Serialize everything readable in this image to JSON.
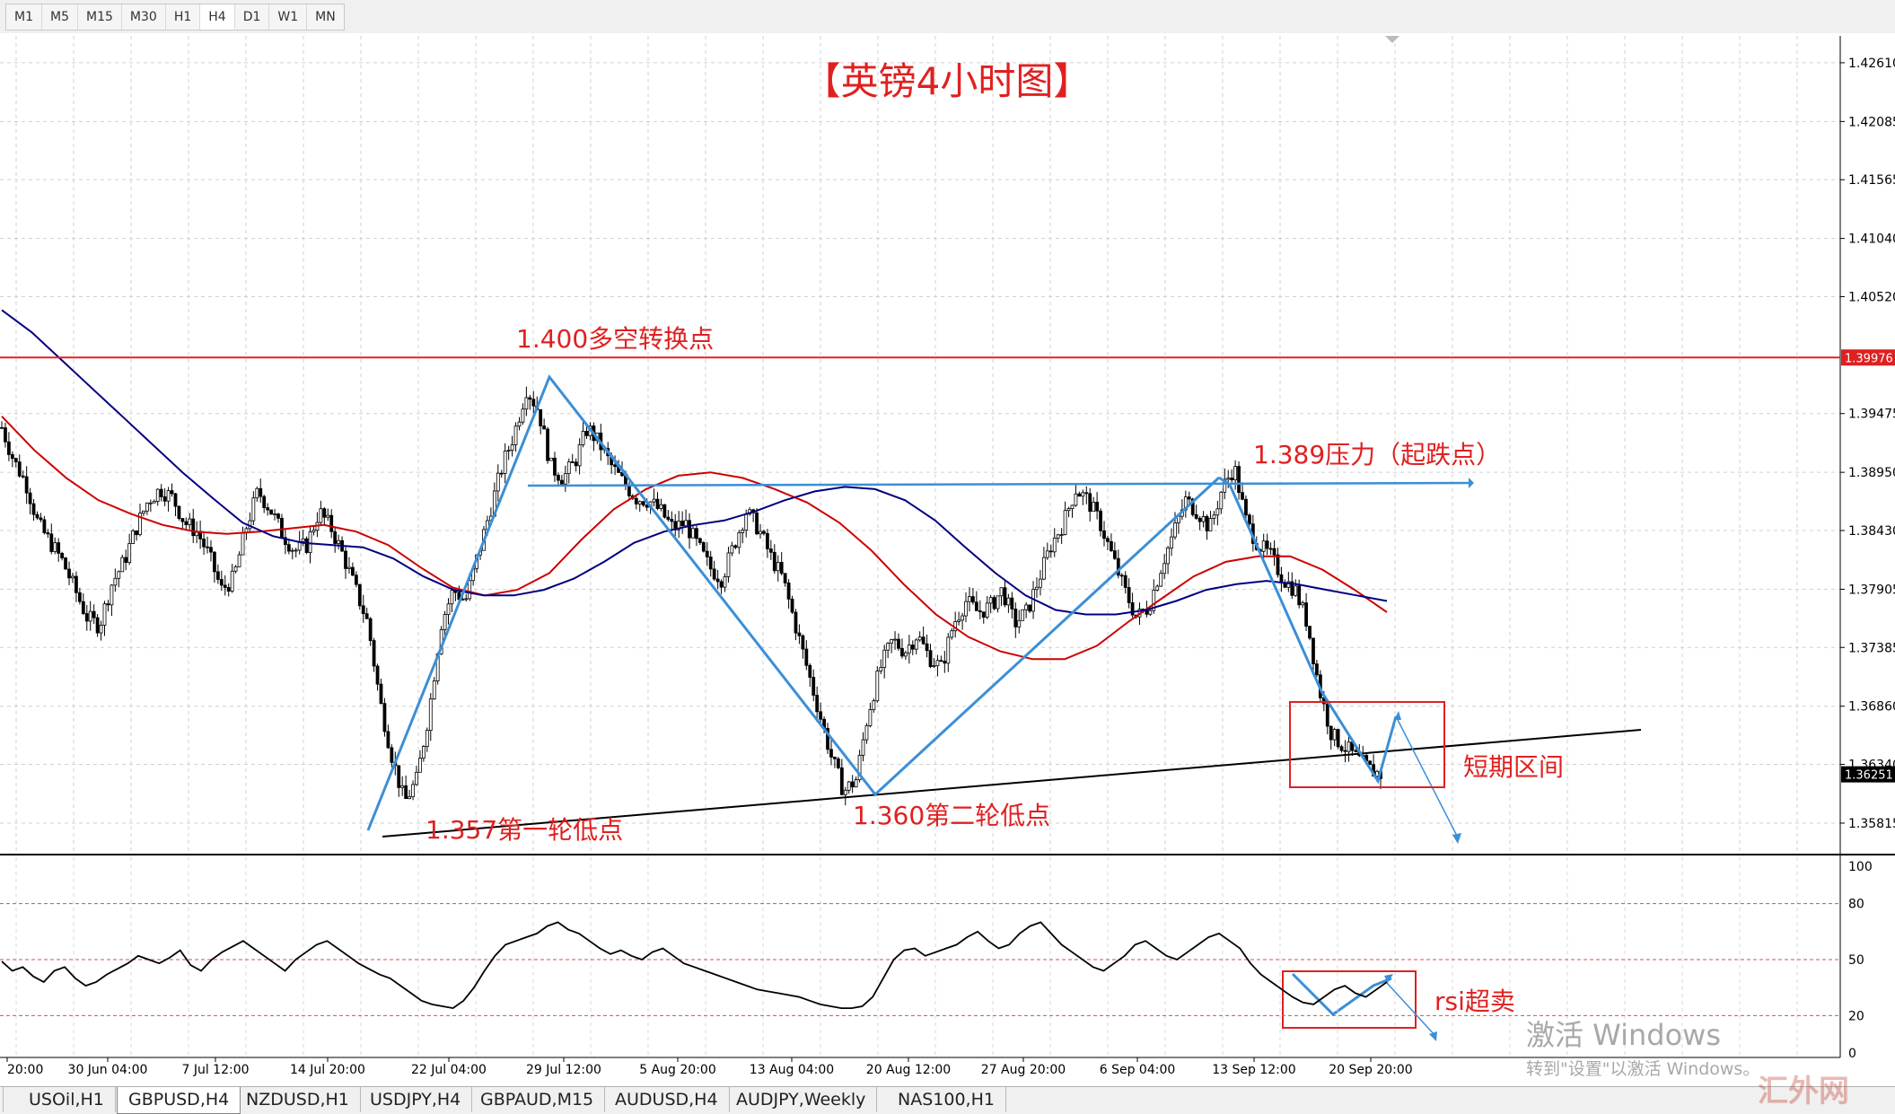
{
  "timeframes": [
    "M1",
    "M5",
    "M15",
    "M30",
    "H1",
    "H4",
    "D1",
    "W1",
    "MN"
  ],
  "active_timeframe": "H4",
  "chart_data": [
    {
      "type": "candlestick",
      "title": "【英镑4小时图】",
      "symbol": "GBPUSD,H4",
      "ylim": [
        1.3555,
        1.4285
      ],
      "y_ticks": [
        "1.42610",
        "1.42085",
        "1.41565",
        "1.41040",
        "1.40520",
        "1.39475",
        "1.38950",
        "1.38430",
        "1.37905",
        "1.37385",
        "1.36860",
        "1.36340",
        "1.35815"
      ],
      "x_ticks": [
        "20:00",
        "30 Jun 04:00",
        "7 Jul 12:00",
        "14 Jul 20:00",
        "22 Jul 04:00",
        "29 Jul 12:00",
        "5 Aug 20:00",
        "13 Aug 04:00",
        "20 Aug 12:00",
        "27 Aug 20:00",
        "6 Sep 04:00",
        "13 Sep 12:00",
        "20 Sep 20:00"
      ],
      "grid": true,
      "current_price": "1.36251",
      "level_price": "1.39976",
      "close_path": [
        1.3935,
        1.3905,
        1.3885,
        1.3848,
        1.3832,
        1.3815,
        1.379,
        1.3765,
        1.3758,
        1.3795,
        1.3815,
        1.3845,
        1.387,
        1.388,
        1.3872,
        1.385,
        1.3842,
        1.382,
        1.379,
        1.38,
        1.3845,
        1.3878,
        1.3862,
        1.384,
        1.3825,
        1.383,
        1.386,
        1.3845,
        1.382,
        1.379,
        1.376,
        1.369,
        1.364,
        1.36,
        1.362,
        1.368,
        1.376,
        1.379,
        1.378,
        1.382,
        1.386,
        1.39,
        1.393,
        1.397,
        1.395,
        1.39,
        1.389,
        1.3905,
        1.3935,
        1.392,
        1.39,
        1.3885,
        1.3872,
        1.387,
        1.386,
        1.3845,
        1.385,
        1.383,
        1.381,
        1.38,
        1.383,
        1.386,
        1.3845,
        1.382,
        1.38,
        1.376,
        1.372,
        1.368,
        1.364,
        1.361,
        1.362,
        1.368,
        1.372,
        1.3745,
        1.3735,
        1.375,
        1.373,
        1.372,
        1.376,
        1.378,
        1.377,
        1.3775,
        1.379,
        1.376,
        1.377,
        1.38,
        1.383,
        1.385,
        1.388,
        1.387,
        1.385,
        1.382,
        1.379,
        1.3765,
        1.3775,
        1.381,
        1.384,
        1.387,
        1.386,
        1.3845,
        1.388,
        1.39,
        1.385,
        1.383,
        1.382,
        1.38,
        1.379,
        1.376,
        1.37,
        1.366,
        1.365,
        1.364,
        1.363,
        1.3625
      ],
      "series": [
        {
          "color": "#cc0000",
          "values": [
            1.3945,
            1.3915,
            1.389,
            1.387,
            1.3858,
            1.3848,
            1.3842,
            1.384,
            1.3842,
            1.3845,
            1.3848,
            1.3842,
            1.383,
            1.381,
            1.3792,
            1.3785,
            1.379,
            1.3805,
            1.3835,
            1.3862,
            1.388,
            1.3892,
            1.3895,
            1.389,
            1.388,
            1.3868,
            1.385,
            1.3825,
            1.3795,
            1.3768,
            1.3748,
            1.3735,
            1.3728,
            1.3728,
            1.374,
            1.3762,
            1.3782,
            1.3802,
            1.3815,
            1.382,
            1.382,
            1.3808,
            1.379,
            1.377
          ]
        },
        {
          "color": "#000080",
          "values": [
            1.404,
            1.402,
            1.3995,
            1.397,
            1.3945,
            1.392,
            1.3895,
            1.3872,
            1.385,
            1.3838,
            1.3832,
            1.383,
            1.3828,
            1.3818,
            1.3802,
            1.379,
            1.3785,
            1.3785,
            1.379,
            1.38,
            1.3815,
            1.3832,
            1.3842,
            1.3848,
            1.3852,
            1.386,
            1.387,
            1.3878,
            1.3882,
            1.388,
            1.387,
            1.3852,
            1.3828,
            1.3805,
            1.3785,
            1.3772,
            1.3768,
            1.3768,
            1.3772,
            1.378,
            1.379,
            1.3795,
            1.3798,
            1.3795,
            1.379,
            1.3785,
            1.378
          ]
        }
      ],
      "annotations": [
        {
          "text": "1.400多空转换点"
        },
        {
          "text": "1.389压力（起跌点）"
        },
        {
          "text": "1.357第一轮低点"
        },
        {
          "text": "1.360第二轮低点"
        },
        {
          "text": "短期区间"
        }
      ]
    },
    {
      "type": "line",
      "indicator": "RSI",
      "ylim": [
        0,
        100
      ],
      "y_ticks": [
        "100",
        "80",
        "50",
        "20",
        "0"
      ],
      "levels": [
        80,
        50,
        20
      ],
      "values": [
        49,
        44,
        46,
        41,
        38,
        44,
        46,
        40,
        36,
        38,
        42,
        45,
        48,
        52,
        50,
        48,
        51,
        55,
        47,
        44,
        50,
        54,
        57,
        60,
        56,
        52,
        48,
        44,
        50,
        54,
        58,
        60,
        56,
        52,
        48,
        45,
        42,
        40,
        36,
        32,
        28,
        26,
        25,
        24,
        28,
        35,
        44,
        52,
        58,
        60,
        62,
        64,
        68,
        70,
        66,
        64,
        60,
        56,
        53,
        55,
        52,
        50,
        54,
        56,
        52,
        48,
        46,
        44,
        42,
        40,
        38,
        36,
        34,
        33,
        32,
        31,
        30,
        28,
        26,
        25,
        24,
        24,
        25,
        30,
        40,
        50,
        55,
        56,
        52,
        54,
        56,
        58,
        62,
        65,
        60,
        56,
        58,
        64,
        68,
        70,
        64,
        58,
        54,
        50,
        46,
        44,
        48,
        52,
        58,
        60,
        56,
        52,
        50,
        54,
        58,
        62,
        64,
        60,
        56,
        48,
        42,
        38,
        34,
        30,
        27,
        26,
        30,
        34,
        36,
        32,
        30,
        34,
        38
      ]
    }
  ],
  "annotation_label_rsi": "rsi超卖",
  "tabs": [
    "USOil,H1",
    "GBPUSD,H4",
    "NZDUSD,H1",
    "USDJPY,H4",
    "GBPAUD,M15",
    "AUDUSD,H4",
    "AUDJPY,Weekly",
    "NAS100,H1"
  ],
  "active_tab": "GBPUSD,H4",
  "watermark": {
    "line1": "激活 Windows",
    "line2": "转到\"设置\"以激活 Windows。"
  },
  "logo_text": "汇外网"
}
